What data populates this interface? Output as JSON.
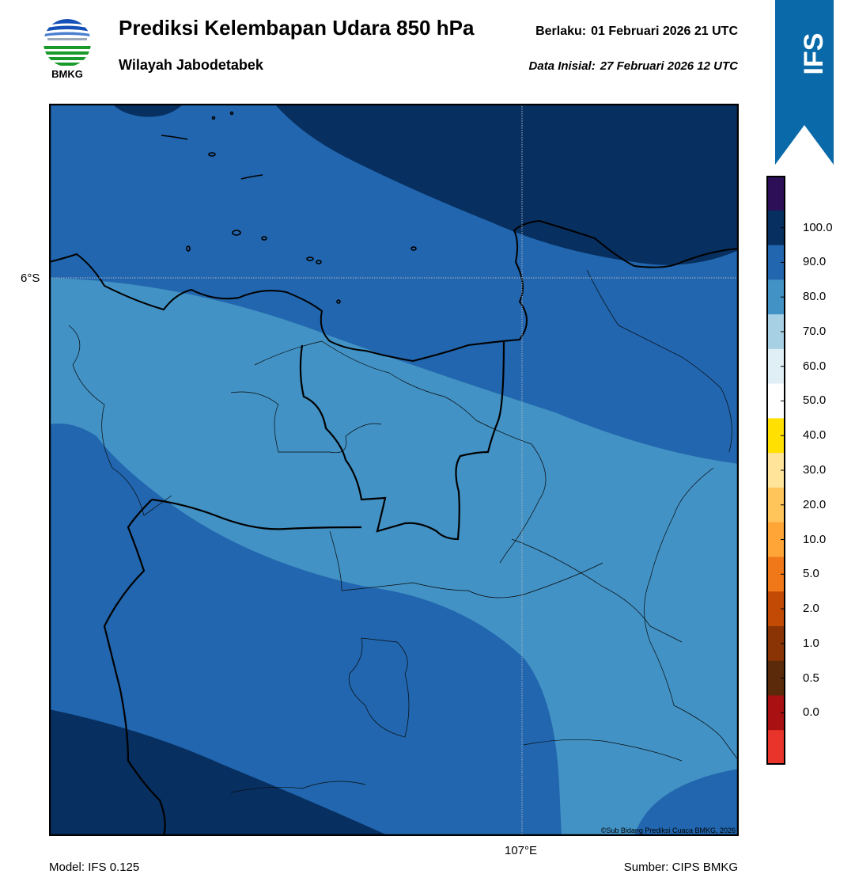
{
  "header": {
    "logo_text": "BMKG",
    "title": "Prediksi Kelembapan Udara 850 hPa",
    "subtitle": "Wilayah Jabodetabek",
    "valid_label": "Berlaku:",
    "valid_value": "01 Februari 2026 21 UTC",
    "init_label": "Data Inisial:",
    "init_value": "27 Februari 2026 12 UTC"
  },
  "ribbon": {
    "text": "IFS",
    "color": "#0a6aa9"
  },
  "map": {
    "lat_label": "6°S",
    "lon_label": "107°E",
    "copyright": "©Sub Bidang Prediksi Cuaca BMKG, 2026",
    "fill_colors": {
      "rh_60_70": "#a8d0e4",
      "rh_70_80": "#4292c5",
      "rh_80_90": "#2166ae",
      "rh_90_100": "#072f60"
    }
  },
  "colorbar": {
    "labels": [
      "100.0",
      "90.0",
      "80.0",
      "70.0",
      "60.0",
      "50.0",
      "40.0",
      "30.0",
      "20.0",
      "10.0",
      "5.0",
      "2.0",
      "1.0",
      "0.5",
      "0.0"
    ],
    "colors_top_to_bottom": [
      "#2d0f57",
      "#072f60",
      "#2166ae",
      "#4292c5",
      "#a8d0e4",
      "#e0eef5",
      "#ffffff",
      "#ffe000",
      "#ffe49a",
      "#ffc45a",
      "#ffa437",
      "#f07818",
      "#c24a04",
      "#8a3405",
      "#5a2a0a",
      "#a81012",
      "#e8342a"
    ]
  },
  "footer": {
    "model": "Model: IFS 0.125",
    "source": "Sumber: CIPS BMKG"
  }
}
